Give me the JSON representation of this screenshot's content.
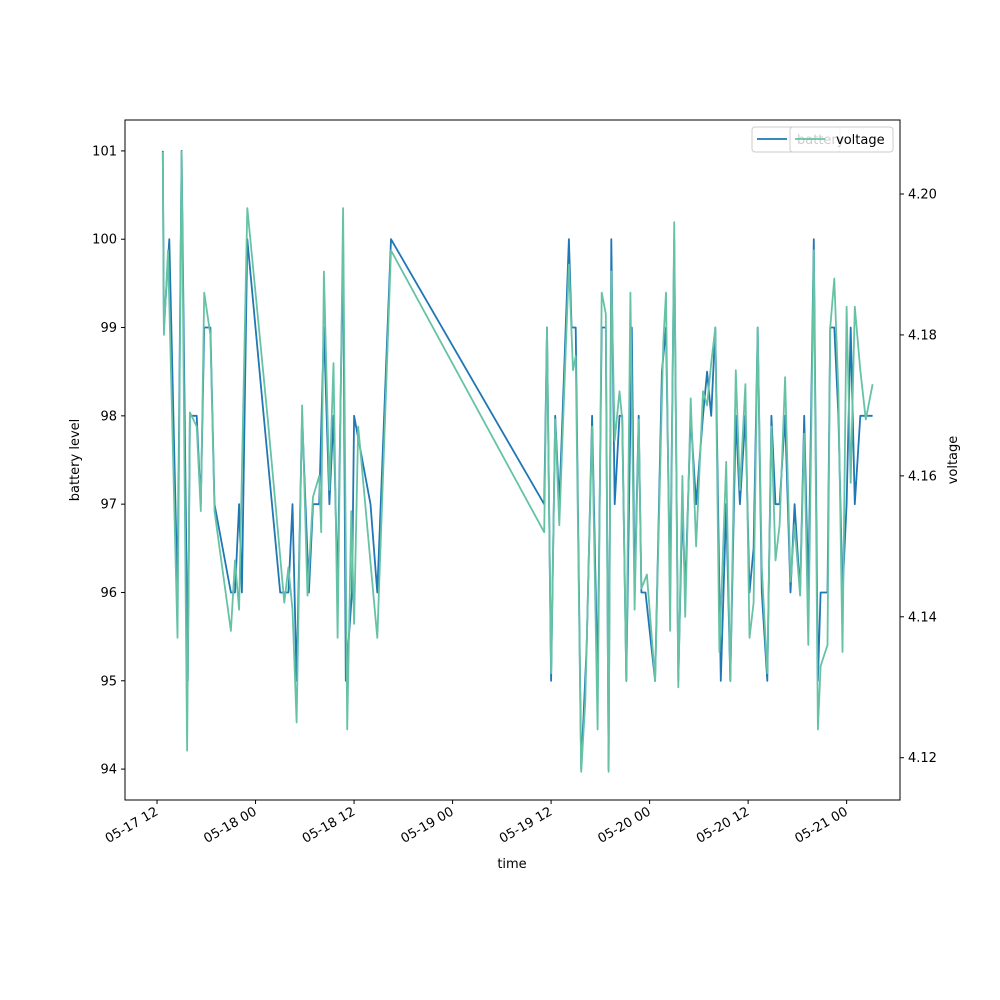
{
  "chart_data": {
    "type": "line",
    "xlabel": "time",
    "ylabel": "battery level",
    "y2label": "voltage",
    "colors": {
      "battery": "#1f77b4",
      "voltage": "#66c2a5"
    },
    "xlim": [
      "05-17 08:06",
      "05-21 06:30"
    ],
    "ylim": [
      93.65,
      101.35
    ],
    "y2lim": [
      4.114,
      4.2105
    ],
    "x_ticks": [
      "05-17 12",
      "05-18 00",
      "05-18 12",
      "05-19 00",
      "05-19 12",
      "05-20 00",
      "05-20 12",
      "05-21 00"
    ],
    "y_ticks": [
      "94",
      "95",
      "96",
      "97",
      "98",
      "99",
      "100",
      "101"
    ],
    "y2_ticks": [
      "4.12",
      "4.14",
      "4.16",
      "4.18",
      "4.20"
    ],
    "grid": false,
    "legend_placement": "top-right",
    "legend": {
      "battery_label": "battery",
      "voltage_label": "voltage"
    },
    "series": [
      {
        "name": "battery",
        "axis": "left",
        "points": [
          [
            "05-17 12:42",
            101
          ],
          [
            "05-17 12:50",
            99
          ],
          [
            "05-17 13:30",
            100
          ],
          [
            "05-17 14:30",
            96
          ],
          [
            "05-17 15:00",
            101
          ],
          [
            "05-17 15:45",
            95
          ],
          [
            "05-17 16:00",
            98
          ],
          [
            "05-17 16:50",
            98
          ],
          [
            "05-17 17:20",
            97
          ],
          [
            "05-17 17:45",
            99
          ],
          [
            "05-17 18:30",
            99
          ],
          [
            "05-17 19:00",
            97
          ],
          [
            "05-17 21:00",
            96
          ],
          [
            "05-17 21:30",
            96
          ],
          [
            "05-17 22:00",
            97
          ],
          [
            "05-17 22:20",
            96
          ],
          [
            "05-17 23:00",
            100
          ],
          [
            "05-18 01:00",
            98
          ],
          [
            "05-18 02:00",
            97
          ],
          [
            "05-18 03:00",
            96
          ],
          [
            "05-18 04:00",
            96
          ],
          [
            "05-18 04:30",
            97
          ],
          [
            "05-18 05:00",
            95
          ],
          [
            "05-18 05:40",
            98
          ],
          [
            "05-18 06:30",
            96
          ],
          [
            "05-18 07:00",
            97
          ],
          [
            "05-18 07:45",
            97
          ],
          [
            "05-18 08:20",
            99
          ],
          [
            "05-18 09:00",
            97
          ],
          [
            "05-18 09:30",
            98
          ],
          [
            "05-18 10:00",
            96
          ],
          [
            "05-18 10:40",
            100
          ],
          [
            "05-18 11:00",
            95
          ],
          [
            "05-18 11:45",
            96
          ],
          [
            "05-18 12:00",
            98
          ],
          [
            "05-18 14:00",
            97
          ],
          [
            "05-18 14:50",
            96
          ],
          [
            "05-18 16:30",
            100
          ],
          [
            "05-19 11:10",
            97
          ],
          [
            "05-19 11:30",
            99
          ],
          [
            "05-19 12:00",
            95
          ],
          [
            "05-19 12:30",
            98
          ],
          [
            "05-19 13:00",
            97
          ],
          [
            "05-19 14:10",
            100
          ],
          [
            "05-19 14:30",
            99
          ],
          [
            "05-19 15:00",
            99
          ],
          [
            "05-19 15:40",
            94
          ],
          [
            "05-19 16:20",
            95.4
          ],
          [
            "05-19 17:00",
            98
          ],
          [
            "05-19 17:40",
            95
          ],
          [
            "05-19 18:10",
            99
          ],
          [
            "05-19 18:40",
            99
          ],
          [
            "05-19 19:00",
            94
          ],
          [
            "05-19 19:20",
            100
          ],
          [
            "05-19 19:45",
            97
          ],
          [
            "05-19 20:20",
            98
          ],
          [
            "05-19 20:40",
            98
          ],
          [
            "05-19 21:10",
            95
          ],
          [
            "05-19 21:50",
            99
          ],
          [
            "05-19 22:10",
            96
          ],
          [
            "05-19 22:40",
            98
          ],
          [
            "05-19 23:00",
            96
          ],
          [
            "05-19 23:30",
            96
          ],
          [
            "05-20 00:40",
            95
          ],
          [
            "05-20 01:30",
            98.5
          ],
          [
            "05-20 02:00",
            99
          ],
          [
            "05-20 02:30",
            96
          ],
          [
            "05-20 03:00",
            100
          ],
          [
            "05-20 03:30",
            95
          ],
          [
            "05-20 04:00",
            97
          ],
          [
            "05-20 04:20",
            96
          ],
          [
            "05-20 05:00",
            98
          ],
          [
            "05-20 05:40",
            97
          ],
          [
            "05-20 06:30",
            98
          ],
          [
            "05-20 07:00",
            98.5
          ],
          [
            "05-20 07:30",
            98
          ],
          [
            "05-20 08:00",
            99
          ],
          [
            "05-20 08:40",
            95
          ],
          [
            "05-20 09:20",
            97
          ],
          [
            "05-20 09:50",
            95
          ],
          [
            "05-20 10:30",
            98
          ],
          [
            "05-20 11:00",
            97
          ],
          [
            "05-20 11:40",
            98
          ],
          [
            "05-20 12:10",
            96
          ],
          [
            "05-20 12:40",
            96.5
          ],
          [
            "05-20 13:10",
            99
          ],
          [
            "05-20 13:40",
            96
          ],
          [
            "05-20 14:20",
            95
          ],
          [
            "05-20 14:50",
            98
          ],
          [
            "05-20 15:20",
            97
          ],
          [
            "05-20 15:50",
            97
          ],
          [
            "05-20 16:30",
            98
          ],
          [
            "05-20 17:10",
            96
          ],
          [
            "05-20 17:40",
            97
          ],
          [
            "05-20 18:20",
            96
          ],
          [
            "05-20 18:50",
            98
          ],
          [
            "05-20 19:20",
            96
          ],
          [
            "05-20 20:00",
            100
          ],
          [
            "05-20 20:30",
            95
          ],
          [
            "05-20 20:50",
            96
          ],
          [
            "05-20 21:40",
            96
          ],
          [
            "05-20 22:00",
            99
          ],
          [
            "05-20 22:30",
            99
          ],
          [
            "05-20 23:00",
            98
          ],
          [
            "05-20 23:30",
            96
          ],
          [
            "05-21 00:00",
            97
          ],
          [
            "05-21 00:30",
            99
          ],
          [
            "05-21 01:00",
            97
          ],
          [
            "05-21 01:40",
            98
          ],
          [
            "05-21 02:20",
            98
          ],
          [
            "05-21 03:10",
            98
          ]
        ]
      },
      {
        "name": "voltage",
        "axis": "right",
        "points": [
          [
            "05-17 12:42",
            4.206
          ],
          [
            "05-17 12:50",
            4.18
          ],
          [
            "05-17 13:20",
            4.192
          ],
          [
            "05-17 14:30",
            4.137
          ],
          [
            "05-17 15:00",
            4.206
          ],
          [
            "05-17 15:40",
            4.121
          ],
          [
            "05-17 16:00",
            4.169
          ],
          [
            "05-17 16:50",
            4.167
          ],
          [
            "05-17 17:20",
            4.155
          ],
          [
            "05-17 17:45",
            4.186
          ],
          [
            "05-17 18:30",
            4.18
          ],
          [
            "05-17 19:00",
            4.155
          ],
          [
            "05-17 21:00",
            4.138
          ],
          [
            "05-17 21:30",
            4.148
          ],
          [
            "05-17 22:00",
            4.141
          ],
          [
            "05-17 23:00",
            4.198
          ],
          [
            "05-18 01:30",
            4.168
          ],
          [
            "05-18 02:30",
            4.155
          ],
          [
            "05-18 03:30",
            4.142
          ],
          [
            "05-18 04:00",
            4.147
          ],
          [
            "05-18 04:30",
            4.141
          ],
          [
            "05-18 05:00",
            4.125
          ],
          [
            "05-18 05:40",
            4.17
          ],
          [
            "05-18 06:20",
            4.143
          ],
          [
            "05-18 07:00",
            4.157
          ],
          [
            "05-18 07:45",
            4.16
          ],
          [
            "05-18 08:00",
            4.152
          ],
          [
            "05-18 08:20",
            4.189
          ],
          [
            "05-18 09:00",
            4.158
          ],
          [
            "05-18 09:30",
            4.176
          ],
          [
            "05-18 10:00",
            4.137
          ],
          [
            "05-18 10:40",
            4.198
          ],
          [
            "05-18 11:10",
            4.124
          ],
          [
            "05-18 11:40",
            4.155
          ],
          [
            "05-18 12:00",
            4.139
          ],
          [
            "05-18 12:30",
            4.167
          ],
          [
            "05-18 14:50",
            4.137
          ],
          [
            "05-18 16:30",
            4.192
          ],
          [
            "05-19 11:10",
            4.152
          ],
          [
            "05-19 11:30",
            4.181
          ],
          [
            "05-19 12:00",
            4.132
          ],
          [
            "05-19 12:30",
            4.168
          ],
          [
            "05-19 13:00",
            4.153
          ],
          [
            "05-19 14:10",
            4.19
          ],
          [
            "05-19 14:40",
            4.175
          ],
          [
            "05-19 15:00",
            4.177
          ],
          [
            "05-19 15:40",
            4.118
          ],
          [
            "05-19 16:10",
            4.128
          ],
          [
            "05-19 17:00",
            4.167
          ],
          [
            "05-19 17:40",
            4.124
          ],
          [
            "05-19 18:10",
            4.186
          ],
          [
            "05-19 18:40",
            4.183
          ],
          [
            "05-19 19:00",
            4.118
          ],
          [
            "05-19 19:20",
            4.189
          ],
          [
            "05-19 19:45",
            4.165
          ],
          [
            "05-19 20:20",
            4.172
          ],
          [
            "05-19 20:40",
            4.168
          ],
          [
            "05-19 21:10",
            4.131
          ],
          [
            "05-19 21:40",
            4.186
          ],
          [
            "05-19 22:10",
            4.141
          ],
          [
            "05-19 22:40",
            4.168
          ],
          [
            "05-19 23:00",
            4.144
          ],
          [
            "05-19 23:40",
            4.146
          ],
          [
            "05-20 00:40",
            4.131
          ],
          [
            "05-20 01:40",
            4.179
          ],
          [
            "05-20 02:00",
            4.186
          ],
          [
            "05-20 02:30",
            4.138
          ],
          [
            "05-20 03:00",
            4.196
          ],
          [
            "05-20 03:30",
            4.13
          ],
          [
            "05-20 04:00",
            4.16
          ],
          [
            "05-20 04:20",
            4.14
          ],
          [
            "05-20 05:00",
            4.171
          ],
          [
            "05-20 05:40",
            4.15
          ],
          [
            "05-20 06:30",
            4.172
          ],
          [
            "05-20 07:00",
            4.17
          ],
          [
            "05-20 07:30",
            4.176
          ],
          [
            "05-20 08:00",
            4.181
          ],
          [
            "05-20 08:30",
            4.135
          ],
          [
            "05-20 09:20",
            4.162
          ],
          [
            "05-20 09:50",
            4.131
          ],
          [
            "05-20 10:30",
            4.175
          ],
          [
            "05-20 11:00",
            4.158
          ],
          [
            "05-20 11:40",
            4.173
          ],
          [
            "05-20 12:10",
            4.137
          ],
          [
            "05-20 12:40",
            4.142
          ],
          [
            "05-20 13:10",
            4.181
          ],
          [
            "05-20 13:40",
            4.147
          ],
          [
            "05-20 14:20",
            4.132
          ],
          [
            "05-20 14:50",
            4.167
          ],
          [
            "05-20 15:20",
            4.148
          ],
          [
            "05-20 15:50",
            4.153
          ],
          [
            "05-20 16:30",
            4.174
          ],
          [
            "05-20 17:10",
            4.145
          ],
          [
            "05-20 17:40",
            4.153
          ],
          [
            "05-20 18:20",
            4.143
          ],
          [
            "05-20 18:50",
            4.166
          ],
          [
            "05-20 19:20",
            4.136
          ],
          [
            "05-20 20:00",
            4.192
          ],
          [
            "05-20 20:30",
            4.124
          ],
          [
            "05-20 20:50",
            4.133
          ],
          [
            "05-20 21:40",
            4.136
          ],
          [
            "05-20 22:00",
            4.181
          ],
          [
            "05-20 22:30",
            4.188
          ],
          [
            "05-20 23:00",
            4.172
          ],
          [
            "05-20 23:30",
            4.135
          ],
          [
            "05-21 00:00",
            4.184
          ],
          [
            "05-21 00:30",
            4.159
          ],
          [
            "05-21 01:00",
            4.184
          ],
          [
            "05-21 01:40",
            4.175
          ],
          [
            "05-21 02:20",
            4.168
          ],
          [
            "05-21 03:10",
            4.173
          ]
        ]
      }
    ]
  }
}
